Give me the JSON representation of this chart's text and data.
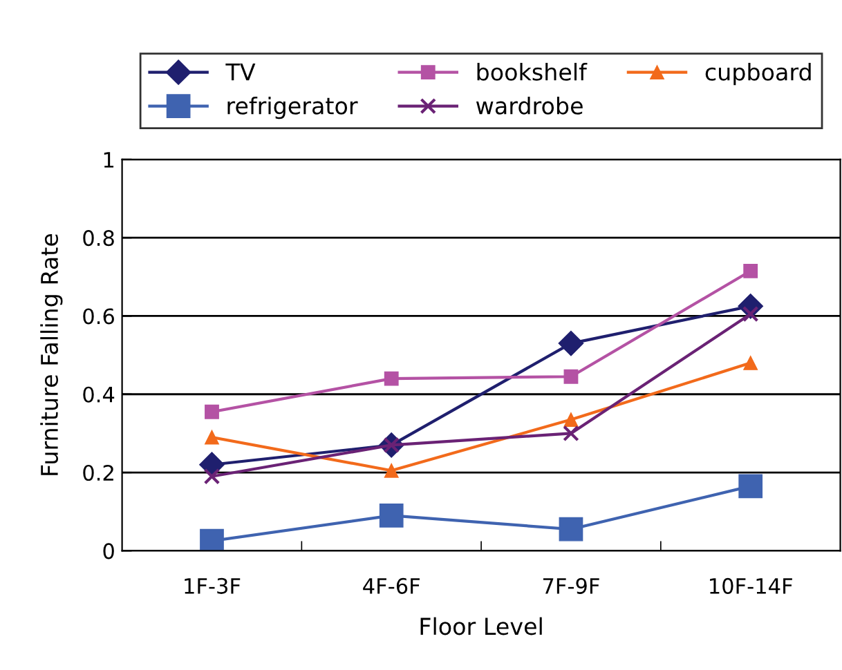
{
  "chart_data": {
    "type": "line",
    "xlabel": "Floor Level",
    "ylabel": "Furniture Falling Rate",
    "categories": [
      "1F-3F",
      "4F-6F",
      "7F-9F",
      "10F-14F"
    ],
    "series": [
      {
        "name": "TV",
        "color": "#1f1f6e",
        "marker": "diamond",
        "values": [
          0.22,
          0.27,
          0.53,
          0.625
        ]
      },
      {
        "name": "bookshelf",
        "color": "#b452a4",
        "marker": "square",
        "values": [
          0.355,
          0.44,
          0.445,
          0.715
        ]
      },
      {
        "name": "cupboard",
        "color": "#f26a1b",
        "marker": "triangle",
        "values": [
          0.29,
          0.205,
          0.335,
          0.48
        ]
      },
      {
        "name": "refrigerator",
        "color": "#3f63b0",
        "marker": "square",
        "values": [
          0.025,
          0.09,
          0.055,
          0.165
        ]
      },
      {
        "name": "wardrobe",
        "color": "#6a2275",
        "marker": "cross",
        "values": [
          0.19,
          0.27,
          0.3,
          0.605
        ]
      }
    ],
    "ylim": [
      0,
      1
    ],
    "yticks": [
      0,
      0.2,
      0.4,
      0.6,
      0.8,
      1
    ],
    "grid": "y",
    "legend": "top",
    "line_style": "solid"
  }
}
